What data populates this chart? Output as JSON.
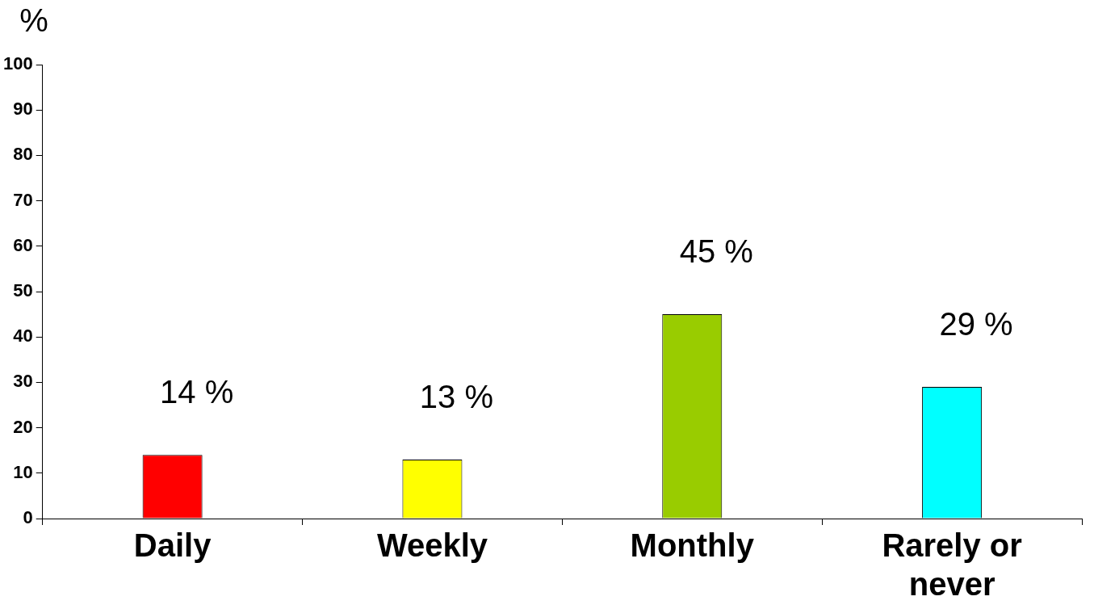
{
  "chart_data": {
    "type": "bar",
    "ylabel": "%",
    "categories": [
      "Daily",
      "Weekly",
      "Monthly",
      "Rarely or never"
    ],
    "values": [
      14,
      13,
      45,
      29
    ],
    "colors": [
      "#ff0000",
      "#ffff00",
      "#99cc00",
      "#00ffff"
    ],
    "value_labels": [
      "14 %",
      "13 %",
      "45 %",
      "29 %"
    ],
    "ylim": [
      0,
      100
    ],
    "yticks": [
      0,
      10,
      20,
      30,
      40,
      50,
      60,
      70,
      80,
      90,
      100
    ],
    "grid": false,
    "legend": false
  }
}
